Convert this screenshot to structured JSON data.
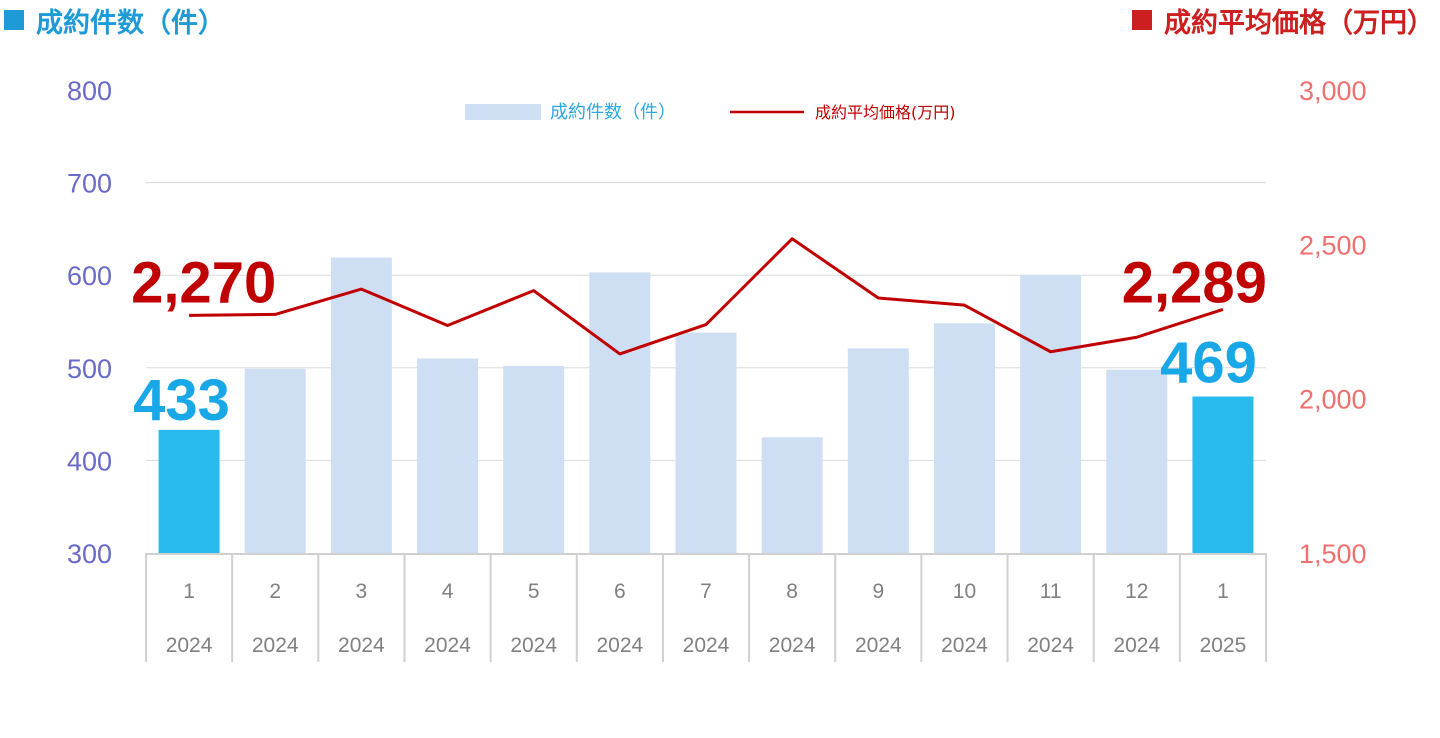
{
  "headers": {
    "left": "成約件数（件）",
    "right": "成約平均価格（万円）",
    "left_color": "#1E9BD7",
    "right_color": "#CC1F1F"
  },
  "chart_data": {
    "type": "bar",
    "categories": [
      {
        "month": "1",
        "year": "2024"
      },
      {
        "month": "2",
        "year": "2024"
      },
      {
        "month": "3",
        "year": "2024"
      },
      {
        "month": "4",
        "year": "2024"
      },
      {
        "month": "5",
        "year": "2024"
      },
      {
        "month": "6",
        "year": "2024"
      },
      {
        "month": "7",
        "year": "2024"
      },
      {
        "month": "8",
        "year": "2024"
      },
      {
        "month": "9",
        "year": "2024"
      },
      {
        "month": "10",
        "year": "2024"
      },
      {
        "month": "11",
        "year": "2024"
      },
      {
        "month": "12",
        "year": "2024"
      },
      {
        "month": "1",
        "year": "2025"
      }
    ],
    "series": [
      {
        "name": "成約件数（件）",
        "type": "bar",
        "axis": "left",
        "values": [
          433,
          499,
          619,
          510,
          502,
          603,
          538,
          425,
          521,
          548,
          600,
          498,
          469
        ],
        "color": "#CFDFF3",
        "highlight_color": "#2ABBEE",
        "highlight_indices": [
          0,
          12
        ]
      },
      {
        "name": "成約平均価格(万円)",
        "type": "line",
        "axis": "right",
        "values": [
          2270,
          2273,
          2355,
          2237,
          2350,
          2145,
          2240,
          2518,
          2326,
          2303,
          2152,
          2199,
          2289
        ],
        "color": "#C00000"
      }
    ],
    "y_left": {
      "min": 300,
      "max": 800,
      "ticks": [
        "300",
        "400",
        "500",
        "600",
        "700",
        "800"
      ]
    },
    "y_right": {
      "min": 1500,
      "max": 3000,
      "ticks": [
        "1,500",
        "2,000",
        "2,500",
        "3,000"
      ]
    },
    "data_labels": {
      "count_first": "433",
      "count_last": "469",
      "price_first": "2,270",
      "price_last": "2,289"
    },
    "grid": true,
    "legend": "top-center"
  }
}
